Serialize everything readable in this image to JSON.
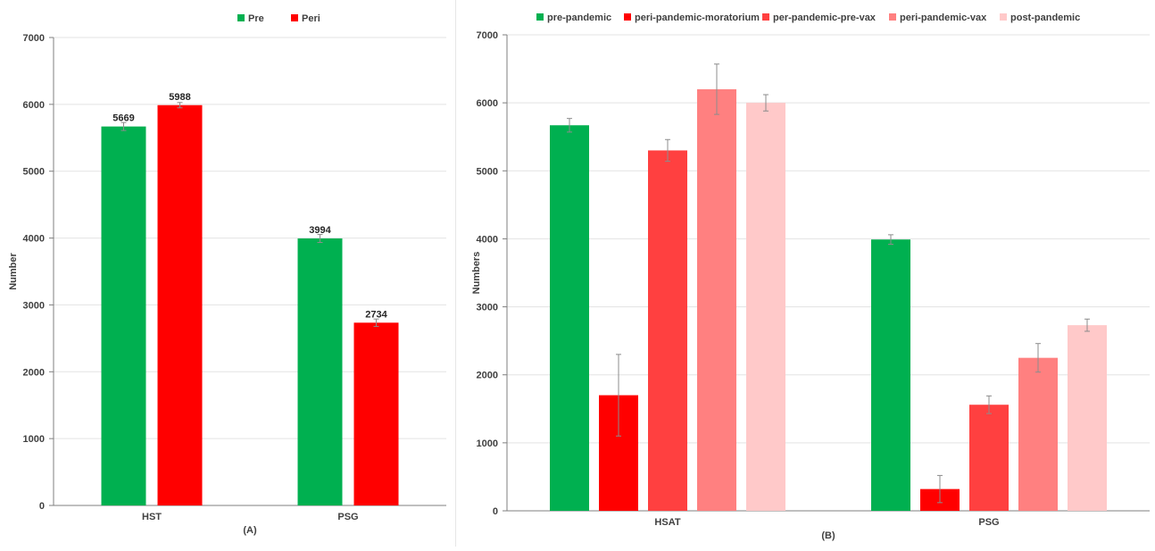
{
  "chart_data": [
    {
      "type": "bar",
      "categories": [
        "HST",
        "PSG"
      ],
      "series": [
        {
          "name": "Pre",
          "values": [
            5669,
            3994
          ],
          "color": "#00b050"
        },
        {
          "name": "Peri",
          "values": [
            5988,
            2734
          ],
          "color": "#ff0000"
        }
      ],
      "error": [
        [
          60,
          60
        ],
        [
          40,
          55
        ]
      ],
      "data_labels": [
        [
          "5669",
          "3994"
        ],
        [
          "5988",
          "2734"
        ]
      ],
      "ylabel": "Number",
      "caption": "(A)",
      "ylim": [
        0,
        7000
      ],
      "yticks": [
        "0",
        "1000",
        "2000",
        "3000",
        "4000",
        "5000",
        "6000",
        "7000"
      ],
      "grid": true,
      "legend": "top"
    },
    {
      "type": "bar",
      "categories": [
        "HSAT",
        "PSG"
      ],
      "series": [
        {
          "name": "pre-pandemic",
          "values": [
            5670,
            3990
          ],
          "color": "#00b050"
        },
        {
          "name": "peri-pandemic-moratorium",
          "values": [
            1700,
            320
          ],
          "color": "#ff0000"
        },
        {
          "name": "per-pandemic-pre-vax",
          "values": [
            5300,
            1560
          ],
          "color": "#ff4040"
        },
        {
          "name": "peri-pandemic-vax",
          "values": [
            6200,
            2250
          ],
          "color": "#ff8080"
        },
        {
          "name": "post-pandemic",
          "values": [
            6000,
            2730
          ],
          "color": "#ffc9c9"
        }
      ],
      "error": [
        [
          100,
          70
        ],
        [
          600,
          200
        ],
        [
          160,
          130
        ],
        [
          370,
          210
        ],
        [
          120,
          90
        ]
      ],
      "ylabel": "Numbers",
      "caption": "(B)",
      "ylim": [
        0,
        7000
      ],
      "yticks": [
        "0",
        "1000",
        "2000",
        "3000",
        "4000",
        "5000",
        "6000",
        "7000"
      ],
      "grid": true,
      "legend": "top"
    }
  ]
}
